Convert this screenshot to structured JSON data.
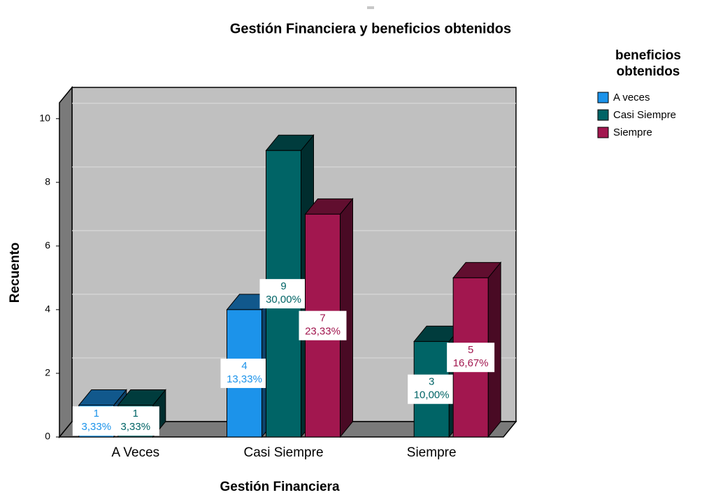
{
  "chart_data": {
    "type": "bar3d",
    "title": "Gestión Financiera y beneficios obtenidos",
    "x_label": "Gestión Financiera",
    "y_label": "Recuento",
    "legend_title": [
      "beneficios",
      "obtenidos"
    ],
    "legend_position": "right",
    "categories": [
      "A Veces",
      "Casi Siempre",
      "Siempre"
    ],
    "series": [
      {
        "name": "A veces",
        "color": "#1c93ea",
        "values": [
          1,
          4,
          null
        ],
        "percents": [
          3.33,
          13.33,
          null
        ],
        "percent_labels": [
          "3,33%",
          "13,33%",
          null
        ]
      },
      {
        "name": "Casi Siempre",
        "color": "#006466",
        "values": [
          1,
          9,
          3
        ],
        "percents": [
          3.33,
          30.0,
          10.0
        ],
        "percent_labels": [
          "3,33%",
          "30,00%",
          "10,00%"
        ]
      },
      {
        "name": "Siempre",
        "color": "#a2174f",
        "values": [
          null,
          7,
          5
        ],
        "percents": [
          null,
          23.33,
          16.67
        ],
        "percent_labels": [
          null,
          "23,33%",
          "16,67%"
        ]
      }
    ],
    "ylim": [
      0,
      10.5
    ],
    "yticks": [
      0,
      2,
      4,
      6,
      8,
      10
    ],
    "grid": true
  }
}
